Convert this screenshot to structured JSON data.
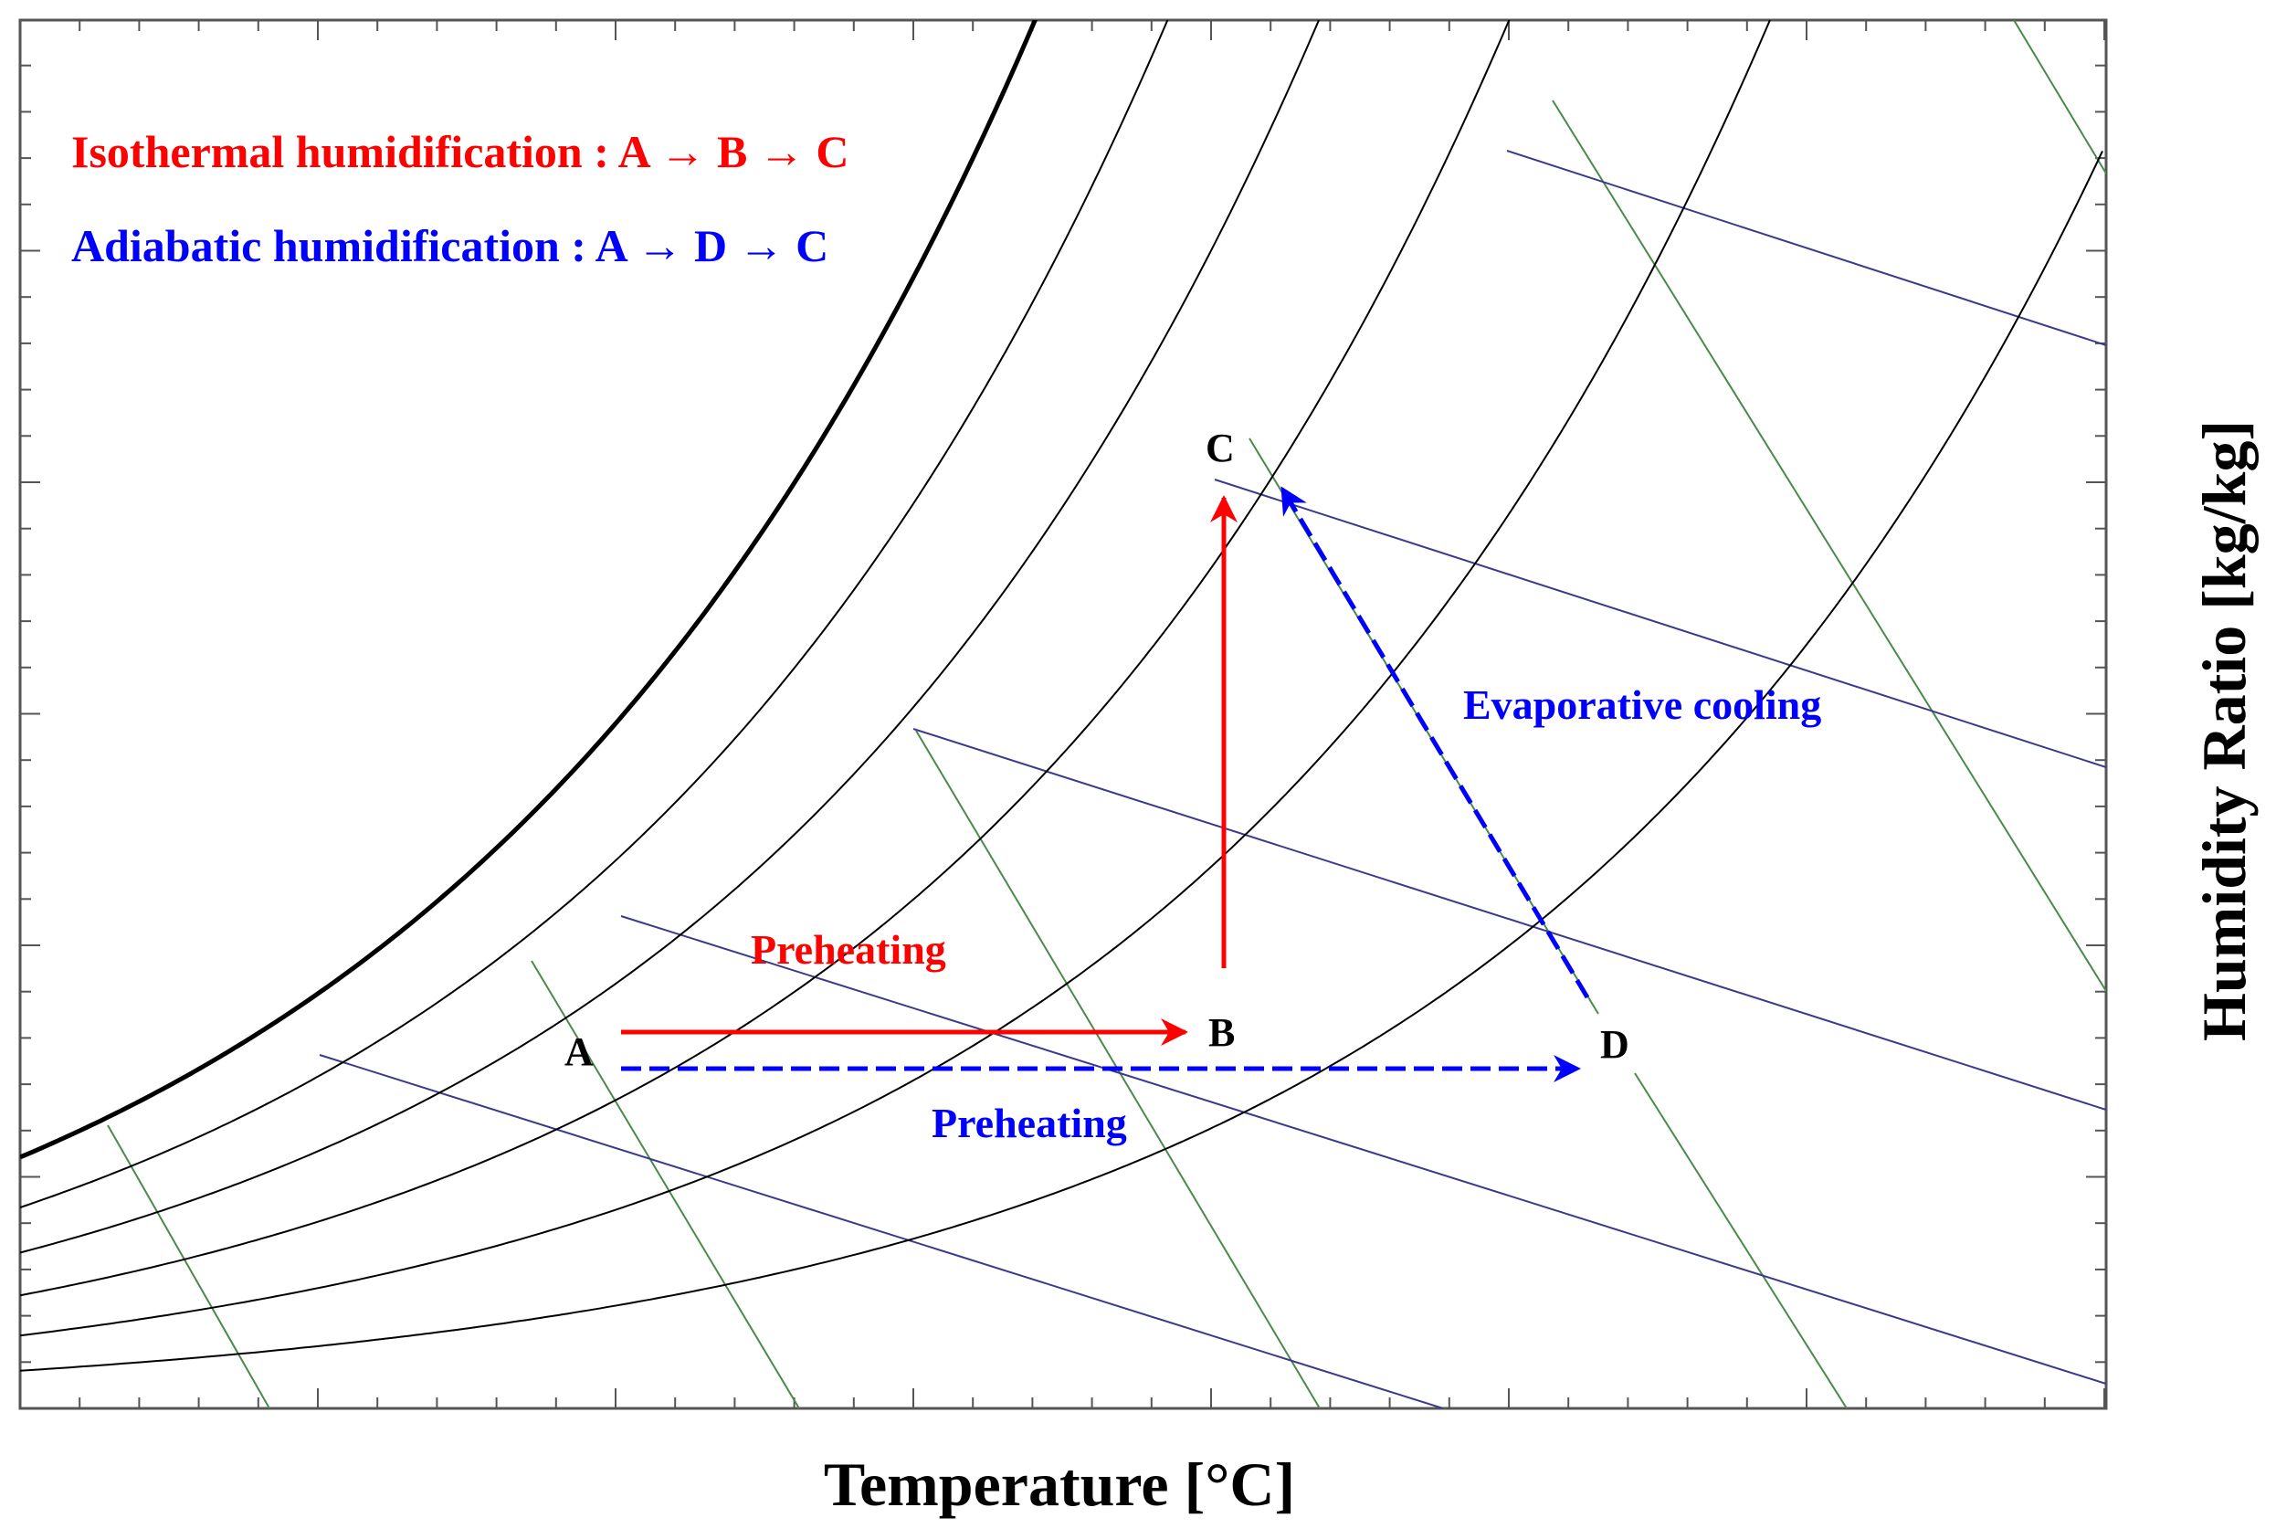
{
  "axes": {
    "xlabel": "Temperature [°C]",
    "ylabel": "Humidity Ratio [kg/kg]"
  },
  "legend": {
    "isothermal": "Isothermal humidification : A → B → C",
    "adiabatic": "Adiabatic humidification : A → D → C"
  },
  "points": {
    "A": "A",
    "B": "B",
    "C": "C",
    "D": "D"
  },
  "annotations": {
    "preheating_red": "Preheating",
    "preheating_blue": "Preheating",
    "evaporative_cooling": "Evaporative cooling"
  },
  "colors": {
    "isothermal": "#ff0000",
    "adiabatic": "#0000ff",
    "saturation": "#000000",
    "rh_curves": "#000000",
    "enthalpy_lines": "#3a3a8c",
    "wetbulb_lines": "#4a8a4a"
  }
}
